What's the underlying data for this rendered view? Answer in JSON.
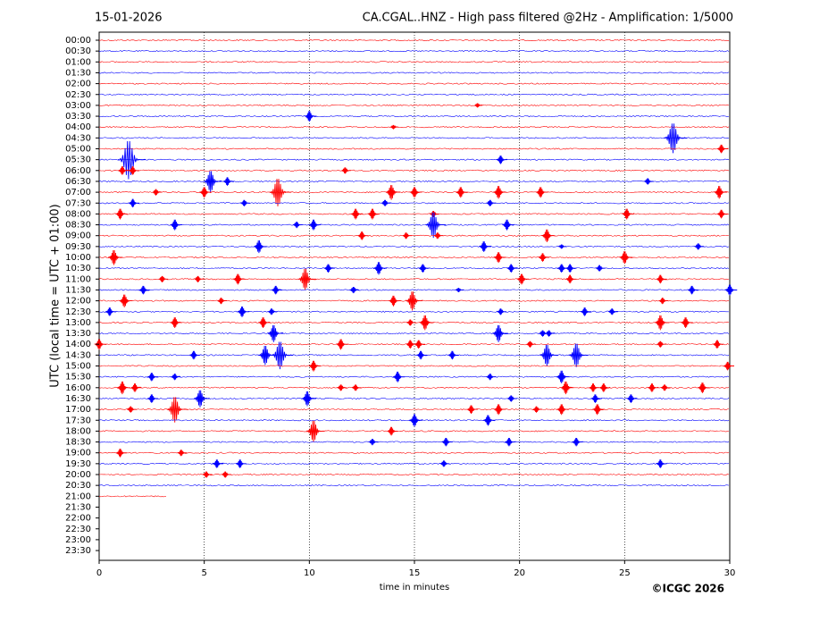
{
  "chart_data": {
    "type": "helicorder",
    "title_left": "15-01-2026",
    "title_right": "CA.CGAL..HNZ - High pass filtered @2Hz - Amplification: 1/5000",
    "y_label": "UTC (local time = UTC + 01:00)",
    "x_label": "time in minutes",
    "copyright": "©ICGC 2026",
    "xlim": [
      0,
      30
    ],
    "xticks": [
      0,
      5,
      10,
      15,
      20,
      25,
      30
    ],
    "grid": true,
    "colors": [
      "#ff0000",
      "#0000ff"
    ],
    "categories": [
      "00:00",
      "00:30",
      "01:00",
      "01:30",
      "02:00",
      "02:30",
      "03:00",
      "03:30",
      "04:00",
      "04:30",
      "05:00",
      "05:30",
      "06:00",
      "06:30",
      "07:00",
      "07:30",
      "08:00",
      "08:30",
      "09:00",
      "09:30",
      "10:00",
      "10:30",
      "11:00",
      "11:30",
      "12:00",
      "12:30",
      "13:00",
      "13:30",
      "14:00",
      "14:30",
      "15:00",
      "15:30",
      "16:00",
      "16:30",
      "17:00",
      "17:30",
      "18:00",
      "18:30",
      "19:00",
      "19:30",
      "20:00",
      "20:30",
      "21:00",
      "21:30",
      "22:00",
      "22:30",
      "23:00",
      "23:30"
    ],
    "traces": [
      {
        "events": []
      },
      {
        "events": []
      },
      {
        "events": []
      },
      {
        "events": []
      },
      {
        "events": []
      },
      {
        "events": []
      },
      {
        "events": [
          [
            18.0,
            0.2
          ]
        ]
      },
      {
        "events": [
          [
            10.0,
            0.5
          ]
        ]
      },
      {
        "events": [
          [
            14.0,
            0.2
          ]
        ]
      },
      {
        "events": [
          [
            27.3,
            1.4
          ]
        ]
      },
      {
        "events": [
          [
            29.6,
            0.4
          ]
        ]
      },
      {
        "events": [
          [
            1.4,
            1.8
          ],
          [
            19.1,
            0.4
          ]
        ]
      },
      {
        "events": [
          [
            1.1,
            0.4
          ],
          [
            1.6,
            0.4
          ],
          [
            11.7,
            0.3
          ]
        ]
      },
      {
        "events": [
          [
            5.3,
            1.0
          ],
          [
            6.1,
            0.4
          ],
          [
            26.1,
            0.3
          ]
        ]
      },
      {
        "events": [
          [
            2.7,
            0.3
          ],
          [
            5.0,
            0.5
          ],
          [
            8.5,
            1.3
          ],
          [
            13.9,
            0.7
          ],
          [
            15.0,
            0.5
          ],
          [
            17.2,
            0.5
          ],
          [
            19.0,
            0.6
          ],
          [
            21.0,
            0.5
          ],
          [
            29.5,
            0.6
          ]
        ]
      },
      {
        "events": [
          [
            1.6,
            0.4
          ],
          [
            6.9,
            0.3
          ],
          [
            13.6,
            0.3
          ],
          [
            18.6,
            0.3
          ]
        ]
      },
      {
        "events": [
          [
            1.0,
            0.5
          ],
          [
            12.2,
            0.5
          ],
          [
            13.0,
            0.5
          ],
          [
            15.9,
            0.3
          ],
          [
            25.1,
            0.5
          ],
          [
            29.6,
            0.4
          ]
        ]
      },
      {
        "events": [
          [
            3.6,
            0.5
          ],
          [
            9.4,
            0.3
          ],
          [
            10.2,
            0.5
          ],
          [
            15.9,
            1.2
          ],
          [
            19.4,
            0.5
          ]
        ]
      },
      {
        "events": [
          [
            12.5,
            0.4
          ],
          [
            14.6,
            0.3
          ],
          [
            16.1,
            0.3
          ],
          [
            21.3,
            0.6
          ]
        ]
      },
      {
        "events": [
          [
            7.6,
            0.6
          ],
          [
            18.3,
            0.5
          ],
          [
            22.0,
            0.2
          ],
          [
            28.5,
            0.3
          ]
        ]
      },
      {
        "events": [
          [
            0.7,
            0.7
          ],
          [
            19.0,
            0.5
          ],
          [
            21.1,
            0.4
          ],
          [
            25.0,
            0.6
          ]
        ]
      },
      {
        "events": [
          [
            10.9,
            0.4
          ],
          [
            13.3,
            0.6
          ],
          [
            15.4,
            0.4
          ],
          [
            19.6,
            0.4
          ],
          [
            22.0,
            0.4
          ],
          [
            22.4,
            0.4
          ],
          [
            23.8,
            0.3
          ]
        ]
      },
      {
        "events": [
          [
            3.0,
            0.3
          ],
          [
            4.7,
            0.3
          ],
          [
            6.6,
            0.5
          ],
          [
            9.8,
            1.0
          ],
          [
            20.1,
            0.5
          ],
          [
            22.4,
            0.4
          ],
          [
            26.7,
            0.4
          ]
        ]
      },
      {
        "events": [
          [
            2.1,
            0.4
          ],
          [
            8.4,
            0.4
          ],
          [
            12.1,
            0.3
          ],
          [
            17.1,
            0.2
          ],
          [
            28.2,
            0.4
          ],
          [
            30.0,
            0.5
          ]
        ]
      },
      {
        "events": [
          [
            1.2,
            0.6
          ],
          [
            5.8,
            0.3
          ],
          [
            14.0,
            0.5
          ],
          [
            14.9,
            0.9
          ],
          [
            26.8,
            0.3
          ]
        ]
      },
      {
        "events": [
          [
            0.5,
            0.4
          ],
          [
            6.8,
            0.5
          ],
          [
            8.2,
            0.3
          ],
          [
            19.1,
            0.3
          ],
          [
            23.1,
            0.4
          ],
          [
            24.4,
            0.3
          ]
        ]
      },
      {
        "events": [
          [
            3.6,
            0.5
          ],
          [
            7.8,
            0.5
          ],
          [
            14.8,
            0.3
          ],
          [
            15.5,
            0.7
          ],
          [
            26.7,
            0.7
          ],
          [
            27.9,
            0.5
          ]
        ]
      },
      {
        "events": [
          [
            8.3,
            0.8
          ],
          [
            19.0,
            0.8
          ],
          [
            21.1,
            0.3
          ],
          [
            21.4,
            0.3
          ]
        ]
      },
      {
        "events": [
          [
            0.0,
            0.5
          ],
          [
            11.5,
            0.5
          ],
          [
            14.8,
            0.4
          ],
          [
            15.2,
            0.4
          ],
          [
            20.5,
            0.3
          ],
          [
            26.7,
            0.3
          ],
          [
            29.4,
            0.4
          ]
        ]
      },
      {
        "events": [
          [
            4.5,
            0.4
          ],
          [
            7.9,
            0.9
          ],
          [
            8.6,
            1.3
          ],
          [
            15.3,
            0.4
          ],
          [
            16.8,
            0.4
          ],
          [
            21.3,
            1.0
          ],
          [
            22.7,
            1.1
          ]
        ]
      },
      {
        "events": [
          [
            10.2,
            0.5
          ],
          [
            29.9,
            0.4
          ]
        ]
      },
      {
        "events": [
          [
            2.5,
            0.4
          ],
          [
            3.6,
            0.3
          ],
          [
            14.2,
            0.5
          ],
          [
            18.6,
            0.3
          ],
          [
            22.0,
            0.6
          ]
        ]
      },
      {
        "events": [
          [
            1.1,
            0.6
          ],
          [
            1.7,
            0.4
          ],
          [
            11.5,
            0.3
          ],
          [
            12.2,
            0.3
          ],
          [
            22.2,
            0.6
          ],
          [
            23.5,
            0.4
          ],
          [
            24.0,
            0.4
          ],
          [
            26.3,
            0.4
          ],
          [
            26.9,
            0.3
          ],
          [
            28.7,
            0.5
          ]
        ]
      },
      {
        "events": [
          [
            2.5,
            0.4
          ],
          [
            4.8,
            0.8
          ],
          [
            9.9,
            0.7
          ],
          [
            19.6,
            0.3
          ],
          [
            23.6,
            0.4
          ],
          [
            25.3,
            0.4
          ]
        ]
      },
      {
        "events": [
          [
            1.5,
            0.3
          ],
          [
            3.6,
            1.2
          ],
          [
            17.7,
            0.4
          ],
          [
            19.0,
            0.5
          ],
          [
            20.8,
            0.3
          ],
          [
            22.0,
            0.5
          ],
          [
            23.7,
            0.5
          ]
        ]
      },
      {
        "events": [
          [
            15.0,
            0.6
          ],
          [
            18.5,
            0.5
          ]
        ]
      },
      {
        "events": [
          [
            10.2,
            1.0
          ],
          [
            13.9,
            0.4
          ]
        ]
      },
      {
        "events": [
          [
            13.0,
            0.3
          ],
          [
            16.5,
            0.4
          ],
          [
            19.5,
            0.4
          ],
          [
            22.7,
            0.4
          ]
        ]
      },
      {
        "events": [
          [
            1.0,
            0.4
          ],
          [
            3.9,
            0.3
          ]
        ]
      },
      {
        "events": [
          [
            5.6,
            0.4
          ],
          [
            6.7,
            0.4
          ],
          [
            16.4,
            0.3
          ],
          [
            26.7,
            0.4
          ]
        ]
      },
      {
        "events": [
          [
            5.1,
            0.3
          ],
          [
            6.0,
            0.3
          ]
        ]
      },
      {
        "events": []
      },
      {
        "events": [],
        "end": 3.2
      },
      null,
      null,
      null,
      null,
      null
    ]
  }
}
